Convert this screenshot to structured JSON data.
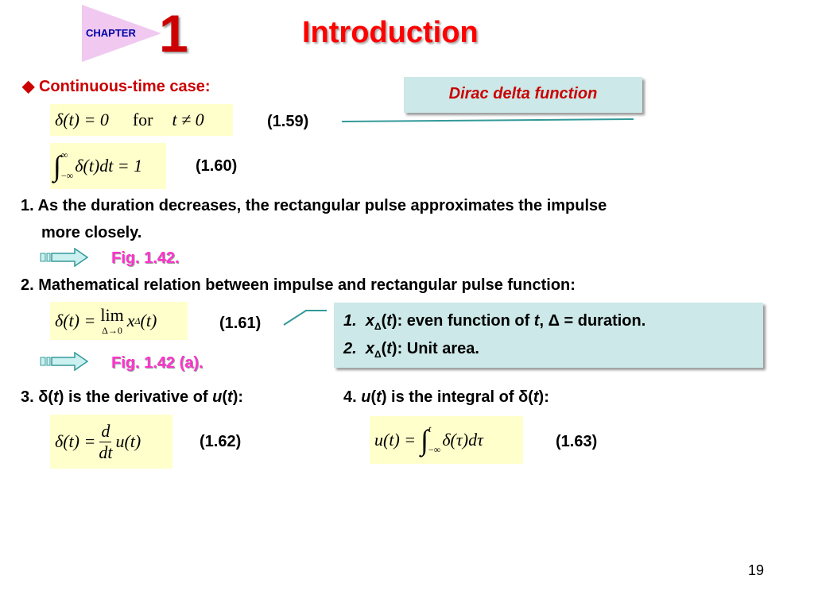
{
  "header": {
    "chapter_label": "CHAPTER",
    "chapter_number": "1",
    "title": "Introduction"
  },
  "section": {
    "bullet": "◆",
    "heading": "Continuous-time case:"
  },
  "callout": {
    "label": "Dirac delta function"
  },
  "equations": {
    "eq159": {
      "lhs": "δ(t) = 0",
      "word": "for",
      "cond": "t ≠ 0",
      "number": "(1.59)"
    },
    "eq160": {
      "upper": "∞",
      "lower": "−∞",
      "body": "δ(t)dt = 1",
      "number": "(1.60)"
    },
    "eq161": {
      "lhs": "δ(t) =",
      "lim": "lim",
      "lim_sub": "Δ→0",
      "rhs": "x",
      "rhs_sub": "Δ",
      "rhs_arg": "(t)",
      "number": "(1.61)"
    },
    "eq162": {
      "lhs": "δ(t) =",
      "num": "d",
      "den": "dt",
      "rhs": "u(t)",
      "number": "(1.62)"
    },
    "eq163": {
      "lhs": "u(t) =",
      "upper": "t",
      "lower": "−∞",
      "body": "δ(τ)dτ",
      "number": "(1.63)"
    }
  },
  "points": {
    "p1_line1": "1. As the duration decreases, the rectangular pulse approximates the impulse",
    "p1_line2": "more closely.",
    "fig1": "Fig. 1.42.",
    "p2": "2. Mathematical relation between impulse and rectangular pulse function:",
    "fig2": "Fig. 1.42 (a).",
    "p3_prefix": "3. ",
    "p3_delta": "δ",
    "p3_t": "t",
    "p3_mid": " is the derivative of ",
    "p3_u": "u",
    "p4_prefix": "4. ",
    "p4_u": "u",
    "p4_t": "t",
    "p4_mid": " is the integral of ",
    "p4_delta": "δ"
  },
  "notes": {
    "n1_num": "1.",
    "n1_x": "x",
    "n1_sub": "Δ",
    "n1_t": "t",
    "n1_text": ": even function of ",
    "n1_t2": "t",
    "n1_rest": ", Δ = duration.",
    "n2_num": "2.",
    "n2_x": "x",
    "n2_sub": "Δ",
    "n2_t": "t",
    "n2_text": ": Unit area."
  },
  "footer": {
    "page_number": "19"
  },
  "colors": {
    "title": "#ff0000",
    "chapter_number": "#cc0000",
    "heading": "#cc0000",
    "callout_text": "#cc0000",
    "fig_link": "#ff33cc",
    "equation_bg": "#ffffcc",
    "box_bg": "#cce8e8",
    "line": "#339999"
  }
}
